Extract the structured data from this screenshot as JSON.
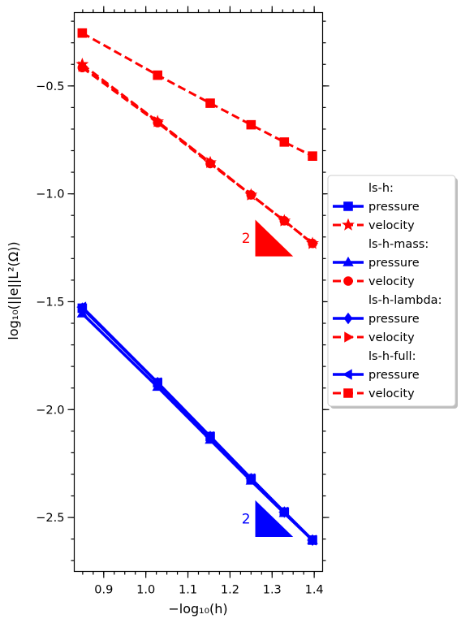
{
  "chart_data": {
    "type": "line",
    "xlabel": "−log₁₀(h)",
    "ylabel": "log₁₀(||e||L²(Ω))",
    "xlim": [
      0.83,
      1.42
    ],
    "ylim": [
      -2.75,
      -0.16
    ],
    "x_ticks": [
      0.9,
      1.0,
      1.1,
      1.2,
      1.3,
      1.4
    ],
    "x_tick_labels": [
      "0.9",
      "1.0",
      "1.1",
      "1.2",
      "1.3",
      "1.4"
    ],
    "y_ticks": [
      -0.5,
      -1.0,
      -1.5,
      -2.0,
      -2.5
    ],
    "y_tick_labels": [
      "−0.5",
      "−1.0",
      "−1.5",
      "−2.0",
      "−2.5"
    ],
    "x": [
      0.849,
      1.028,
      1.153,
      1.25,
      1.329,
      1.396
    ],
    "legend_placement": "right-center, outside axes",
    "legend": [
      {
        "type": "header",
        "label": "ls-h:"
      },
      {
        "type": "entry",
        "label": "pressure",
        "color": "#0000ff",
        "marker": "square",
        "dash": false
      },
      {
        "type": "entry",
        "label": "velocity",
        "color": "#ff0000",
        "marker": "star",
        "dash": true
      },
      {
        "type": "header",
        "label": "ls-h-mass:"
      },
      {
        "type": "entry",
        "label": "pressure",
        "color": "#0000ff",
        "marker": "triangle-up",
        "dash": false
      },
      {
        "type": "entry",
        "label": "velocity",
        "color": "#ff0000",
        "marker": "circle",
        "dash": true
      },
      {
        "type": "header",
        "label": "ls-h-lambda:"
      },
      {
        "type": "entry",
        "label": "pressure",
        "color": "#0000ff",
        "marker": "diamond",
        "dash": false
      },
      {
        "type": "entry",
        "label": "velocity",
        "color": "#ff0000",
        "marker": "triangle-right",
        "dash": true
      },
      {
        "type": "header",
        "label": "ls-h-full:"
      },
      {
        "type": "entry",
        "label": "pressure",
        "color": "#0000ff",
        "marker": "triangle-left",
        "dash": false
      },
      {
        "type": "entry",
        "label": "velocity",
        "color": "#ff0000",
        "marker": "square",
        "dash": true
      }
    ],
    "series": [
      {
        "group": "ls-h",
        "quantity": "pressure",
        "color": "#0000ff",
        "marker": "square",
        "dash": false,
        "values": [
          -1.53,
          -1.875,
          -2.125,
          -2.32,
          -2.475,
          -2.605
        ]
      },
      {
        "group": "ls-h",
        "quantity": "velocity",
        "color": "#ff0000",
        "marker": "star",
        "dash": true,
        "values": [
          -0.4,
          -0.665,
          -0.855,
          -1.005,
          -1.125,
          -1.23
        ]
      },
      {
        "group": "ls-h-mass",
        "quantity": "pressure",
        "color": "#0000ff",
        "marker": "triangle-up",
        "dash": false,
        "values": [
          -1.555,
          -1.895,
          -2.14,
          -2.33,
          -2.48,
          -2.605
        ]
      },
      {
        "group": "ls-h-mass",
        "quantity": "velocity",
        "color": "#ff0000",
        "marker": "circle",
        "dash": true,
        "values": [
          -0.415,
          -0.67,
          -0.86,
          -1.005,
          -1.125,
          -1.23
        ]
      },
      {
        "group": "ls-h-lambda",
        "quantity": "pressure",
        "color": "#0000ff",
        "marker": "diamond",
        "dash": false,
        "values": [
          -1.53,
          -1.875,
          -2.125,
          -2.32,
          -2.475,
          -2.605
        ]
      },
      {
        "group": "ls-h-lambda",
        "quantity": "velocity",
        "color": "#ff0000",
        "marker": "triangle-right",
        "dash": true,
        "values": [
          -0.41,
          -0.665,
          -0.855,
          -1.005,
          -1.125,
          -1.23
        ]
      },
      {
        "group": "ls-h-full",
        "quantity": "pressure",
        "color": "#0000ff",
        "marker": "triangle-left",
        "dash": false,
        "values": [
          -1.525,
          -1.875,
          -2.125,
          -2.32,
          -2.475,
          -2.605
        ]
      },
      {
        "group": "ls-h-full",
        "quantity": "velocity",
        "color": "#ff0000",
        "marker": "square",
        "dash": true,
        "values": [
          -0.255,
          -0.45,
          -0.58,
          -0.68,
          -0.76,
          -0.825
        ]
      }
    ],
    "annotations": [
      {
        "label": "2",
        "color": "#ff0000",
        "x_range": [
          1.26,
          1.35
        ],
        "y_range": [
          -1.29,
          -1.12
        ]
      },
      {
        "label": "2",
        "color": "#0000ff",
        "x_range": [
          1.26,
          1.35
        ],
        "y_range": [
          -2.59,
          -2.42
        ]
      }
    ]
  }
}
